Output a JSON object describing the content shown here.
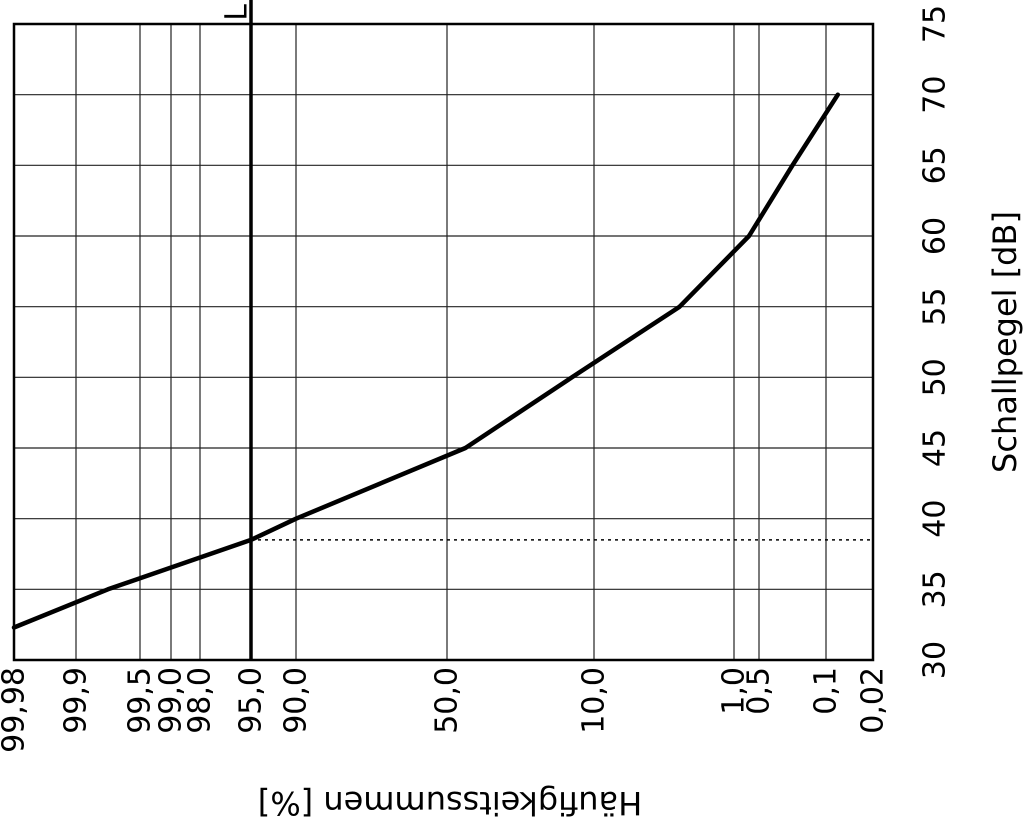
{
  "chart_data": {
    "type": "line",
    "orientation": "rotated-90",
    "xlabel": "Schallpegel   [dB]",
    "ylabel": "Häufigkeitssummen  [%]",
    "level_ticks": [
      30,
      35,
      40,
      45,
      50,
      55,
      60,
      65,
      70,
      75
    ],
    "level_range": [
      30,
      75
    ],
    "percent_ticks": [
      {
        "label": "99,98",
        "value": 99.98
      },
      {
        "label": "99,9",
        "value": 99.9
      },
      {
        "label": "99,5",
        "value": 99.5
      },
      {
        "label": "99,0",
        "value": 99.0
      },
      {
        "label": "98,0",
        "value": 98.0
      },
      {
        "label": "95,0",
        "value": 95.0
      },
      {
        "label": "90,0",
        "value": 90.0
      },
      {
        "label": "50,0",
        "value": 50.0
      },
      {
        "label": "10,0",
        "value": 10.0
      },
      {
        "label": "1,0",
        "value": 1.0
      },
      {
        "label": "0,5",
        "value": 0.5
      },
      {
        "label": "0,1",
        "value": 0.1
      },
      {
        "label": "0,02",
        "value": 0.02
      }
    ],
    "series": [
      {
        "points": [
          {
            "level": 32.3,
            "percent": 99.98
          },
          {
            "level": 35,
            "percent": 99.7
          },
          {
            "level": 38.5,
            "percent": 95.0
          },
          {
            "level": 40,
            "percent": 90.0
          },
          {
            "level": 45,
            "percent": 45.0
          },
          {
            "level": 50,
            "percent": 16.0
          },
          {
            "level": 55,
            "percent": 4.5
          },
          {
            "level": 60,
            "percent": 0.7
          },
          {
            "level": 65,
            "percent": 0.3
          },
          {
            "level": 70,
            "percent": 0.08
          }
        ]
      }
    ],
    "reference_lines": [
      {
        "kind": "percent",
        "value": 95.0,
        "style": "solid-bold",
        "label": "L"
      },
      {
        "kind": "level",
        "value": 38.5,
        "style": "dotted"
      }
    ],
    "grid": true,
    "legend": "none"
  }
}
